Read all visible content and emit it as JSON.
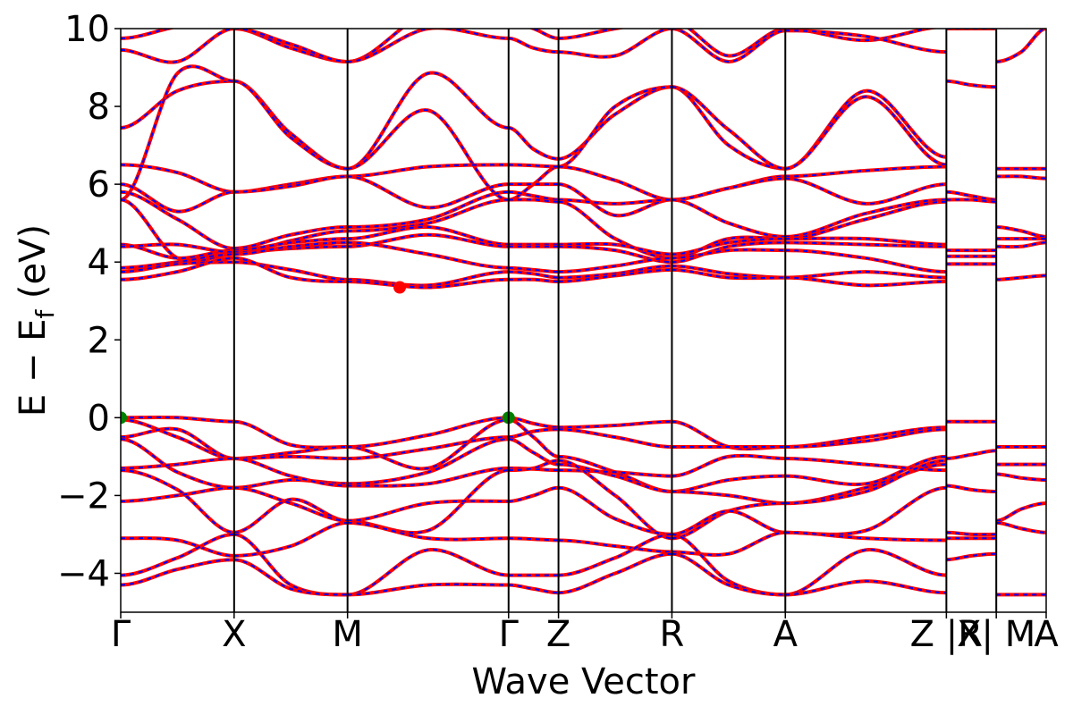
{
  "chart_data": {
    "type": "line",
    "title": "",
    "xlabel": "Wave Vector",
    "ylabel": "E − E_f (eV)",
    "ylabel_parts": {
      "main": "E − E",
      "sub": "f",
      "unit": " (eV)"
    },
    "ylim": [
      -5,
      10
    ],
    "yticks": [
      -4,
      -2,
      0,
      2,
      4,
      6,
      8,
      10
    ],
    "ytick_labels": [
      "−4",
      "−2",
      "0",
      "2",
      "4",
      "6",
      "8",
      "10"
    ],
    "grid": false,
    "kpath": [
      {
        "label": "Γ",
        "x": 0.0
      },
      {
        "label": "X",
        "x": 1.0
      },
      {
        "label": "M",
        "x": 2.0
      },
      {
        "label": "Γ",
        "x": 3.42
      },
      {
        "label": "Z",
        "x": 3.86
      },
      {
        "label": "R",
        "x": 4.86
      },
      {
        "label": "A",
        "x": 5.86
      },
      {
        "label": "Z |R",
        "x": 7.28
      },
      {
        "label": "X| M",
        "x": 7.72
      },
      {
        "label": "A",
        "x": 8.16
      }
    ],
    "x_tick_label_text": [
      "Γ",
      "X",
      "M",
      "Γ",
      "Z",
      "R",
      "A",
      "Z |R",
      "X| M",
      "A"
    ],
    "xlim": [
      0,
      8.16
    ],
    "series_styles": {
      "dft": {
        "color": "#ff0000",
        "style": "solid"
      },
      "wannier": {
        "color": "#0000ff",
        "style": "dashed"
      }
    },
    "markers": [
      {
        "kind": "cbm",
        "x": 2.46,
        "y": 3.35,
        "color": "#ff0000"
      },
      {
        "kind": "vbm",
        "x": 0.0,
        "y": 0.0,
        "color": "#008000"
      },
      {
        "kind": "vbm",
        "x": 3.42,
        "y": 0.0,
        "color": "#008000"
      }
    ],
    "segments": [
      {
        "from": "Γ",
        "to": "X",
        "x0": 0.0,
        "x1": 1.0,
        "bands": [
          [
            9.45,
            9.15,
            10.0
          ],
          [
            9.75,
            10.05,
            10.2
          ],
          [
            7.45,
            8.4,
            8.65
          ],
          [
            5.6,
            8.85,
            8.65
          ],
          [
            6.5,
            6.3,
            5.8
          ],
          [
            6.0,
            5.3,
            5.8
          ],
          [
            5.8,
            5.1,
            4.35
          ],
          [
            5.6,
            4.1,
            4.2
          ],
          [
            4.45,
            4.1,
            4.3
          ],
          [
            4.4,
            4.45,
            4.25
          ],
          [
            3.85,
            4.0,
            4.2
          ],
          [
            3.75,
            3.95,
            4.0
          ],
          [
            3.55,
            3.75,
            4.1
          ],
          [
            0.0,
            0.0,
            -0.1
          ],
          [
            -0.05,
            -0.5,
            -1.05
          ],
          [
            -0.5,
            -0.3,
            -1.05
          ],
          [
            -0.55,
            -1.4,
            -1.8
          ],
          [
            -1.3,
            -1.2,
            -1.05
          ],
          [
            -1.35,
            -1.85,
            -2.95
          ],
          [
            -2.15,
            -2.0,
            -1.8
          ],
          [
            -3.1,
            -3.15,
            -3.55
          ],
          [
            -4.05,
            -3.6,
            -3.0
          ],
          [
            -4.3,
            -3.9,
            -3.65
          ]
        ]
      },
      {
        "from": "X",
        "to": "M",
        "x0": 1.0,
        "x1": 2.0,
        "bands": [
          [
            10.0,
            9.5,
            9.15
          ],
          [
            10.0,
            9.6,
            9.15
          ],
          [
            8.65,
            7.3,
            6.4
          ],
          [
            8.65,
            7.2,
            6.4
          ],
          [
            5.8,
            6.0,
            6.2
          ],
          [
            5.8,
            5.95,
            6.2
          ],
          [
            4.35,
            4.7,
            4.9
          ],
          [
            4.2,
            4.55,
            4.8
          ],
          [
            4.3,
            4.5,
            4.6
          ],
          [
            4.25,
            4.35,
            4.4
          ],
          [
            4.2,
            4.4,
            4.5
          ],
          [
            4.0,
            3.8,
            3.55
          ],
          [
            4.1,
            3.6,
            3.5
          ],
          [
            -0.1,
            -0.7,
            -0.75
          ],
          [
            -1.05,
            -0.9,
            -0.75
          ],
          [
            -1.05,
            -1.0,
            -1.05
          ],
          [
            -1.8,
            -1.6,
            -1.7
          ],
          [
            -1.05,
            -1.5,
            -1.75
          ],
          [
            -2.95,
            -2.1,
            -2.65
          ],
          [
            -1.8,
            -2.2,
            -2.65
          ],
          [
            -3.55,
            -3.3,
            -2.7
          ],
          [
            -3.0,
            -4.3,
            -4.55
          ],
          [
            -3.65,
            -4.4,
            -4.55
          ]
        ]
      },
      {
        "from": "M",
        "to": "Γ",
        "x0": 2.0,
        "x1": 3.42,
        "bands": [
          [
            9.15,
            10.4,
            10.2
          ],
          [
            9.15,
            10.0,
            9.75
          ],
          [
            6.4,
            8.85,
            7.45
          ],
          [
            6.4,
            7.9,
            5.6
          ],
          [
            6.2,
            6.45,
            6.5
          ],
          [
            6.2,
            5.4,
            6.0
          ],
          [
            4.9,
            5.1,
            5.8
          ],
          [
            4.8,
            5.0,
            5.6
          ],
          [
            4.6,
            4.9,
            4.45
          ],
          [
            4.4,
            4.7,
            4.4
          ],
          [
            4.5,
            4.2,
            3.85
          ],
          [
            3.55,
            3.4,
            3.75
          ],
          [
            3.5,
            3.35,
            3.55
          ],
          [
            -0.75,
            -0.45,
            0.0
          ],
          [
            -0.75,
            -1.3,
            -0.05
          ],
          [
            -1.05,
            -0.8,
            -0.5
          ],
          [
            -1.7,
            -1.4,
            -0.55
          ],
          [
            -1.75,
            -1.7,
            -1.3
          ],
          [
            -2.65,
            -2.9,
            -1.35
          ],
          [
            -2.65,
            -2.2,
            -2.15
          ],
          [
            -2.7,
            -3.1,
            -3.1
          ],
          [
            -4.55,
            -3.4,
            -4.05
          ],
          [
            -4.55,
            -4.3,
            -4.3
          ]
        ]
      },
      {
        "from": "Γ",
        "to": "Z",
        "x0": 3.42,
        "x1": 3.86,
        "bands": [
          [
            10.2,
            10.0,
            9.75
          ],
          [
            9.75,
            9.5,
            9.4
          ],
          [
            7.45,
            6.9,
            6.65
          ],
          [
            5.6,
            6.0,
            6.45
          ],
          [
            6.5,
            6.48,
            6.45
          ],
          [
            6.0,
            6.0,
            6.0
          ],
          [
            5.8,
            5.7,
            5.6
          ],
          [
            5.6,
            5.6,
            5.55
          ],
          [
            4.45,
            4.45,
            4.45
          ],
          [
            4.4,
            4.4,
            4.4
          ],
          [
            3.85,
            3.8,
            3.75
          ],
          [
            3.75,
            3.7,
            3.6
          ],
          [
            3.55,
            3.55,
            3.5
          ],
          [
            0.0,
            -0.15,
            -0.25
          ],
          [
            -0.05,
            -0.5,
            -1.0
          ],
          [
            -0.5,
            -0.35,
            -0.3
          ],
          [
            -0.55,
            -0.9,
            -1.2
          ],
          [
            -1.3,
            -1.32,
            -1.35
          ],
          [
            -1.35,
            -1.3,
            -1.1
          ],
          [
            -2.15,
            -2.0,
            -1.8
          ],
          [
            -3.1,
            -3.12,
            -3.15
          ],
          [
            -4.05,
            -4.05,
            -4.05
          ],
          [
            -4.3,
            -4.4,
            -4.5
          ]
        ]
      },
      {
        "from": "Z",
        "to": "R",
        "x0": 3.86,
        "x1": 4.86,
        "bands": [
          [
            9.75,
            10.0,
            10.2
          ],
          [
            9.4,
            9.3,
            10.0
          ],
          [
            6.65,
            7.8,
            8.5
          ],
          [
            6.45,
            8.0,
            8.5
          ],
          [
            6.45,
            6.1,
            5.6
          ],
          [
            6.0,
            5.2,
            5.6
          ],
          [
            5.6,
            5.5,
            5.6
          ],
          [
            5.55,
            4.6,
            4.1
          ],
          [
            4.45,
            4.45,
            4.2
          ],
          [
            4.4,
            4.3,
            4.0
          ],
          [
            3.75,
            3.9,
            4.1
          ],
          [
            3.6,
            3.7,
            3.9
          ],
          [
            3.5,
            3.65,
            3.8
          ],
          [
            -0.25,
            -0.2,
            -0.1
          ],
          [
            -1.0,
            -1.4,
            -1.9
          ],
          [
            -0.3,
            -0.5,
            -0.75
          ],
          [
            -1.2,
            -1.5,
            -1.9
          ],
          [
            -1.35,
            -1.4,
            -1.5
          ],
          [
            -1.1,
            -2.0,
            -3.1
          ],
          [
            -1.8,
            -2.6,
            -3.0
          ],
          [
            -3.15,
            -3.3,
            -3.45
          ],
          [
            -4.05,
            -3.6,
            -3.0
          ],
          [
            -4.5,
            -4.0,
            -3.5
          ]
        ]
      },
      {
        "from": "R",
        "to": "A",
        "x0": 4.86,
        "x1": 5.86,
        "bands": [
          [
            10.2,
            9.3,
            10.0
          ],
          [
            10.0,
            9.15,
            9.95
          ],
          [
            8.5,
            7.0,
            6.4
          ],
          [
            8.5,
            7.4,
            6.4
          ],
          [
            5.6,
            5.9,
            6.2
          ],
          [
            5.6,
            5.9,
            6.15
          ],
          [
            5.6,
            5.0,
            4.65
          ],
          [
            4.1,
            4.6,
            4.6
          ],
          [
            4.2,
            4.5,
            4.6
          ],
          [
            4.0,
            4.4,
            4.5
          ],
          [
            4.1,
            4.3,
            4.3
          ],
          [
            3.9,
            3.7,
            3.6
          ],
          [
            3.8,
            3.6,
            3.6
          ],
          [
            -0.1,
            -0.75,
            -0.75
          ],
          [
            -1.9,
            -1.6,
            -1.5
          ],
          [
            -0.75,
            -0.75,
            -0.75
          ],
          [
            -1.9,
            -2.0,
            -2.2
          ],
          [
            -1.5,
            -1.0,
            -1.05
          ],
          [
            -3.1,
            -2.4,
            -2.2
          ],
          [
            -3.0,
            -2.4,
            -2.95
          ],
          [
            -3.45,
            -3.5,
            -2.95
          ],
          [
            -3.0,
            -4.2,
            -4.55
          ],
          [
            -3.5,
            -4.3,
            -4.55
          ]
        ]
      },
      {
        "from": "A",
        "to": "Z",
        "x0": 5.86,
        "x1": 7.28,
        "bands": [
          [
            10.0,
            9.7,
            10.05
          ],
          [
            9.95,
            9.8,
            9.4
          ],
          [
            6.4,
            8.4,
            6.7
          ],
          [
            6.4,
            8.25,
            6.5
          ],
          [
            6.2,
            6.35,
            6.45
          ],
          [
            6.15,
            5.5,
            6.0
          ],
          [
            4.65,
            5.25,
            5.6
          ],
          [
            4.6,
            5.1,
            5.55
          ],
          [
            4.6,
            4.6,
            4.45
          ],
          [
            4.5,
            4.45,
            4.4
          ],
          [
            4.3,
            4.1,
            3.75
          ],
          [
            3.6,
            3.75,
            3.6
          ],
          [
            3.6,
            3.4,
            3.5
          ],
          [
            -0.75,
            -0.5,
            -0.25
          ],
          [
            -1.5,
            -1.7,
            -1.0
          ],
          [
            -0.75,
            -0.6,
            -0.3
          ],
          [
            -2.2,
            -1.8,
            -1.2
          ],
          [
            -1.05,
            -1.2,
            -1.35
          ],
          [
            -2.2,
            -1.9,
            -1.1
          ],
          [
            -2.95,
            -2.9,
            -1.8
          ],
          [
            -2.95,
            -3.1,
            -3.15
          ],
          [
            -4.55,
            -3.4,
            -4.05
          ],
          [
            -4.55,
            -4.2,
            -4.5
          ]
        ]
      },
      {
        "from": "R",
        "to": "X",
        "x0": 7.28,
        "x1": 7.72,
        "bands": [
          [
            10.0,
            10.0,
            10.0
          ],
          [
            8.65,
            8.55,
            8.5
          ],
          [
            5.8,
            5.7,
            5.6
          ],
          [
            5.6,
            5.6,
            5.55
          ],
          [
            4.3,
            4.3,
            4.3
          ],
          [
            4.15,
            4.15,
            4.15
          ],
          [
            3.95,
            3.95,
            3.95
          ],
          [
            -0.1,
            -0.1,
            -0.1
          ],
          [
            -1.05,
            -0.95,
            -0.85
          ],
          [
            -1.75,
            -1.85,
            -1.9
          ],
          [
            -2.95,
            -3.0,
            -3.0
          ],
          [
            -3.1,
            -3.1,
            -3.1
          ],
          [
            -3.65,
            -3.55,
            -3.5
          ]
        ]
      },
      {
        "from": "M",
        "to": "A",
        "x0": 7.72,
        "x1": 8.16,
        "bands": [
          [
            9.15,
            9.4,
            10.0
          ],
          [
            6.4,
            6.4,
            6.4
          ],
          [
            6.2,
            6.2,
            6.15
          ],
          [
            4.9,
            4.8,
            4.65
          ],
          [
            4.6,
            4.6,
            4.6
          ],
          [
            4.4,
            4.4,
            4.5
          ],
          [
            3.55,
            3.6,
            3.65
          ],
          [
            -0.75,
            -0.75,
            -0.75
          ],
          [
            -1.2,
            -1.2,
            -1.2
          ],
          [
            -1.45,
            -1.55,
            -1.6
          ],
          [
            -2.65,
            -2.35,
            -2.2
          ],
          [
            -2.7,
            -2.85,
            -2.95
          ],
          [
            -4.55,
            -4.55,
            -4.55
          ]
        ]
      }
    ]
  }
}
